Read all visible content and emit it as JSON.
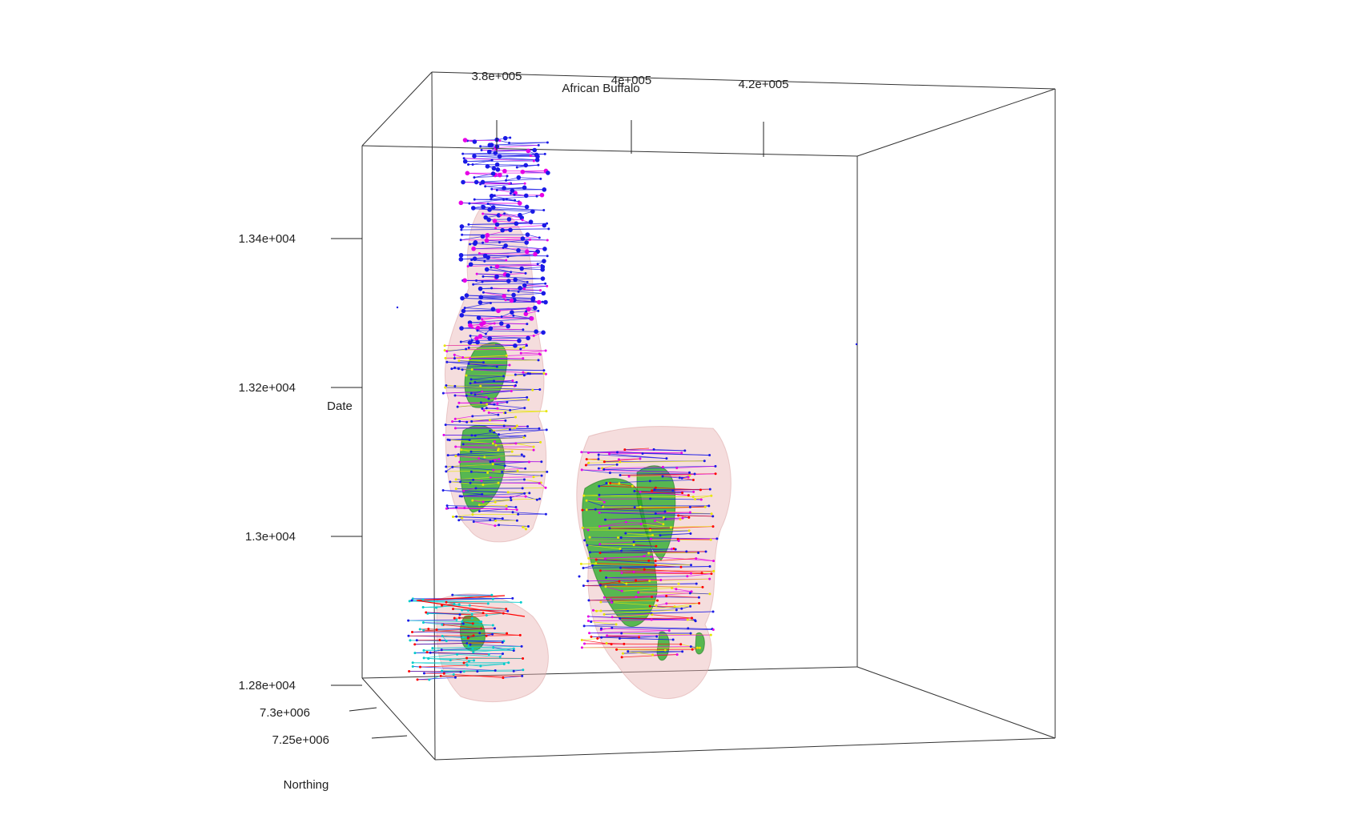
{
  "chart_data": {
    "type": "scatter",
    "title": "African Buffalo",
    "projection": "3d",
    "axes": {
      "x": {
        "label": "",
        "ticks": [
          "3.8e+005",
          "4e+005",
          "4.2e+005"
        ],
        "values": [
          380000,
          400000,
          420000
        ]
      },
      "y": {
        "label": "Northing",
        "ticks": [
          "7.3e+006",
          "7.25e+006"
        ],
        "values": [
          7300000,
          7250000
        ]
      },
      "z": {
        "label": "Date",
        "ticks": [
          "1.34e+004",
          "1.32e+004",
          "1.3e+004",
          "1.28e+004"
        ],
        "values": [
          13400,
          13200,
          13000,
          12800
        ]
      }
    },
    "series": [
      {
        "color": "#1a1ae6"
      },
      {
        "color": "#e600e6"
      },
      {
        "color": "#ff0000"
      },
      {
        "color": "#00cccc"
      },
      {
        "color": "#e6e600"
      }
    ],
    "volumes": [
      {
        "color": "#e8b4b4"
      },
      {
        "color": "#22aa22"
      }
    ]
  }
}
